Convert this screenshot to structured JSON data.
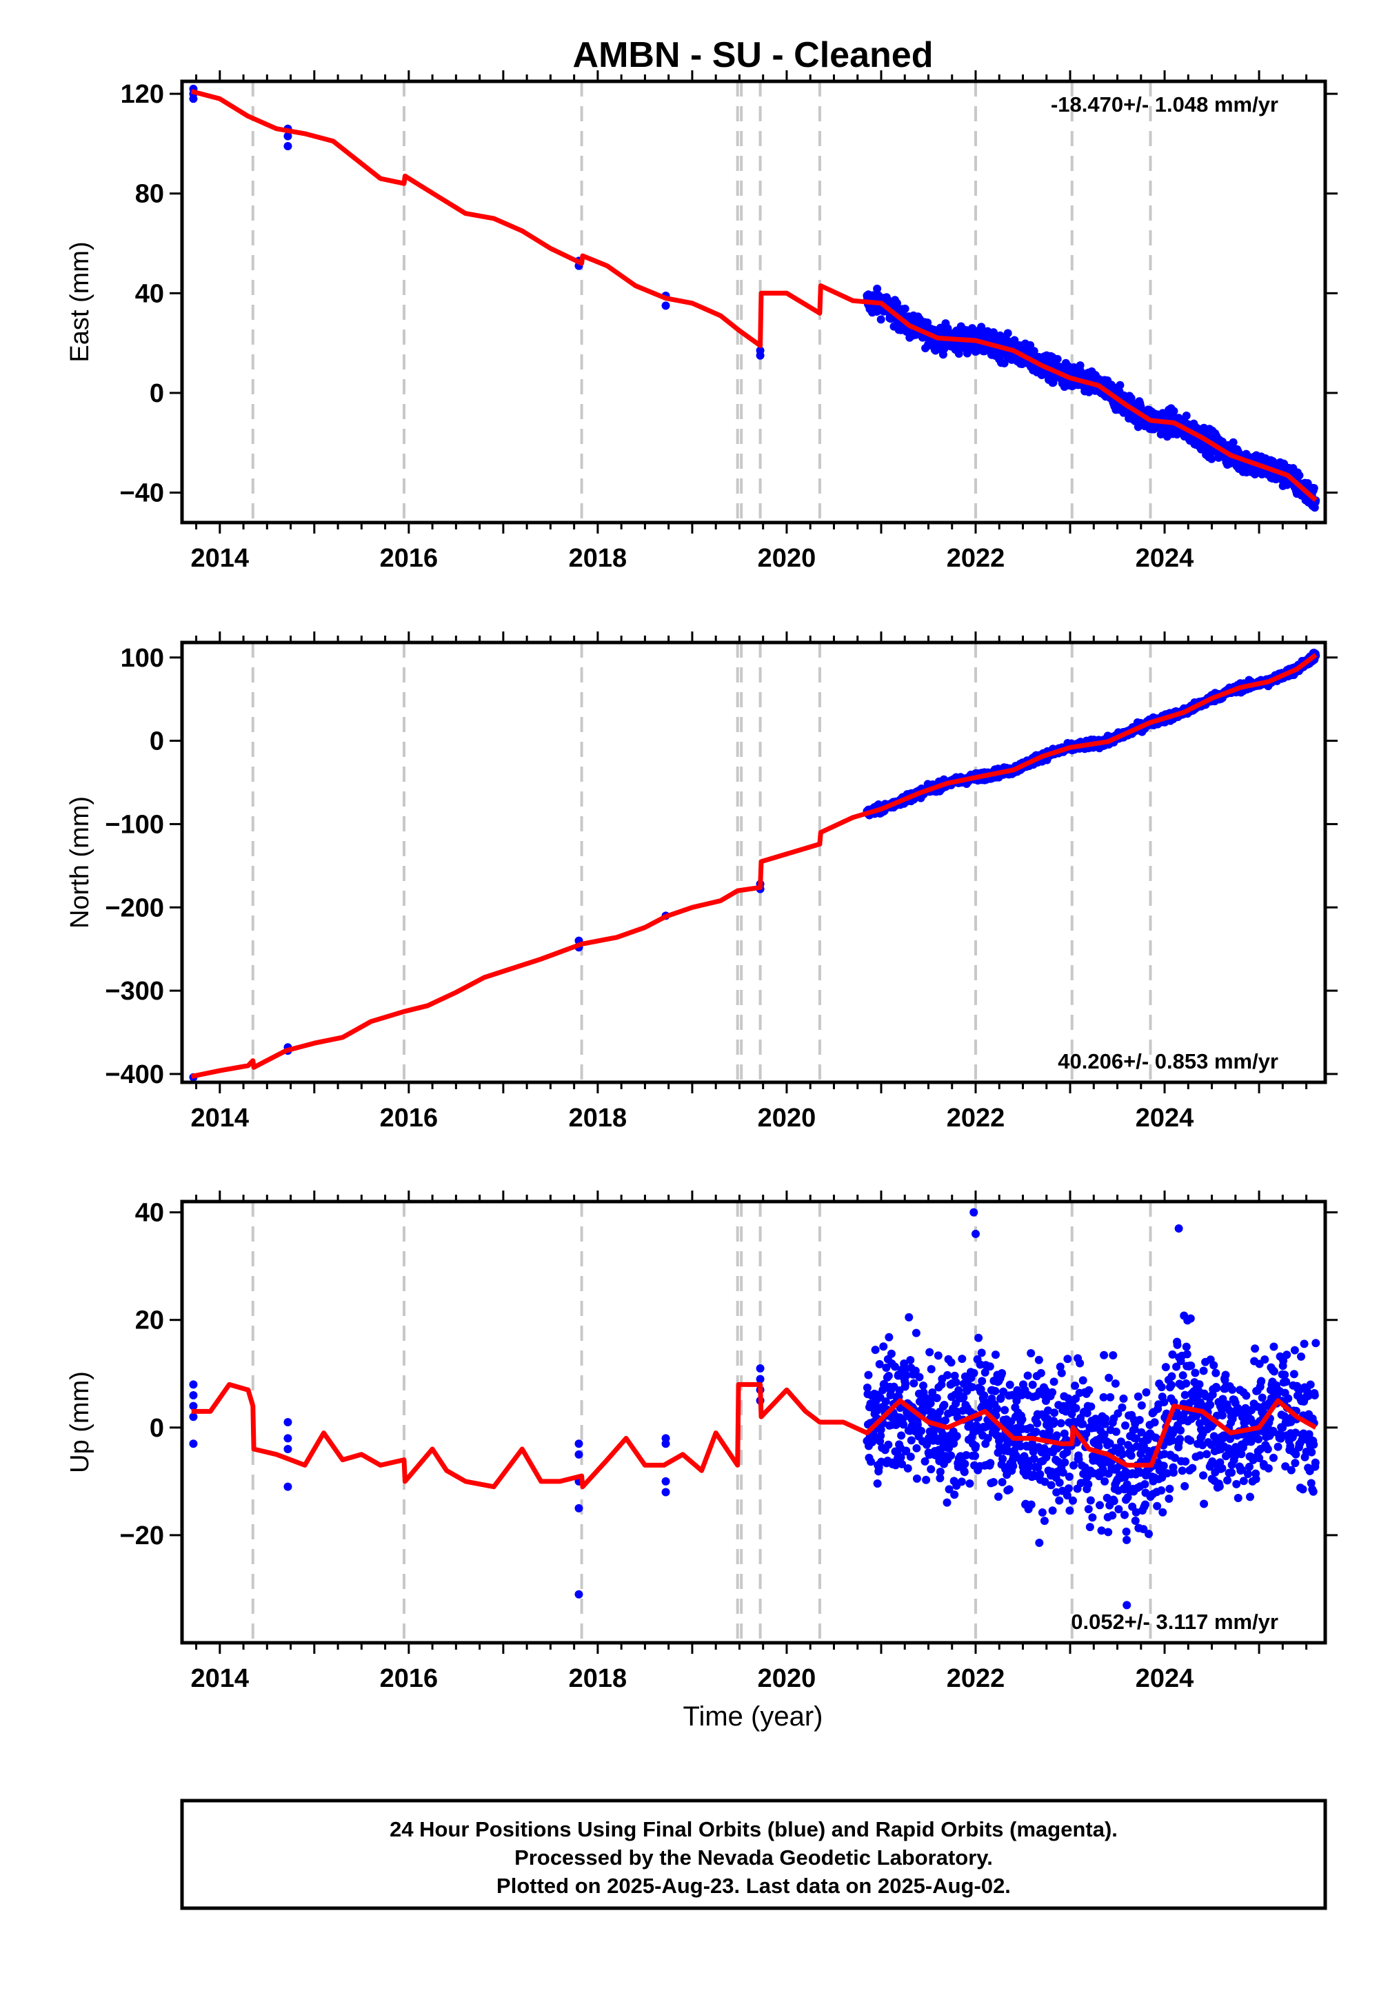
{
  "title": "AMBN  - SU - Cleaned",
  "xlabel": "Time (year)",
  "colors": {
    "data": "#0000ff",
    "model": "#ff0000",
    "offsets": "#c8c8c8",
    "frame": "#000000"
  },
  "footer": {
    "line1": "24 Hour Positions Using Final Orbits (blue) and Rapid Orbits (magenta).",
    "line2": "Processed by the Nevada Geodetic Laboratory.",
    "line3": "Plotted on 2025-Aug-23. Last data on 2025-Aug-02."
  },
  "chart_data": [
    {
      "type": "scatter",
      "ylabel": "East (mm)",
      "rate": "-18.470+/- 1.048 mm/yr",
      "rate_position": "top-right",
      "xlim": [
        2013.6,
        2025.7
      ],
      "ylim": [
        -52,
        125
      ],
      "xticks": [
        2014,
        2016,
        2018,
        2020,
        2022,
        2024
      ],
      "yticks": [
        -40,
        0,
        40,
        80,
        120
      ],
      "offset_lines": [
        2014.35,
        2015.95,
        2017.83,
        2019.48,
        2019.52,
        2019.72,
        2020.35,
        2022.0,
        2023.02,
        2023.85
      ],
      "series": [
        {
          "kind": "points",
          "x": [
            2013.72,
            2013.72,
            2013.72,
            2014.72,
            2014.72,
            2014.72,
            2017.8,
            2017.8,
            2018.72,
            2018.72,
            2019.72,
            2019.72
          ],
          "y": [
            122,
            120,
            118,
            106,
            103,
            99,
            53,
            51,
            39,
            35,
            17,
            15
          ]
        },
        {
          "kind": "cloud",
          "x_start": 2020.85,
          "x_end": 2025.6,
          "y_start": 33,
          "y_end": -44,
          "spread": 3.5
        },
        {
          "kind": "model",
          "x": [
            2013.7,
            2014.0,
            2014.3,
            2014.6,
            2014.9,
            2015.2,
            2015.5,
            2015.7,
            2015.95,
            2015.96,
            2016.3,
            2016.6,
            2016.9,
            2017.2,
            2017.5,
            2017.83,
            2017.84,
            2018.1,
            2018.4,
            2018.72,
            2019.0,
            2019.3,
            2019.5,
            2019.72,
            2019.73,
            2020.0,
            2020.35,
            2020.36,
            2020.7,
            2021.0,
            2021.3,
            2021.6,
            2022.0,
            2022.4,
            2022.7,
            2023.0,
            2023.3,
            2023.6,
            2023.85,
            2024.1,
            2024.4,
            2024.7,
            2025.0,
            2025.3,
            2025.6
          ],
          "y": [
            121,
            118,
            111,
            106,
            104,
            101,
            92,
            86,
            84,
            87,
            79,
            72,
            70,
            65,
            58,
            52,
            55,
            51,
            43,
            38,
            36,
            31,
            25,
            19,
            40,
            40,
            32,
            43,
            37,
            36,
            27,
            22,
            21,
            17,
            11,
            6,
            3,
            -5,
            -11,
            -12,
            -18,
            -25,
            -29,
            -33,
            -43
          ]
        }
      ]
    },
    {
      "type": "scatter",
      "ylabel": "North (mm)",
      "rate": "40.206+/- 0.853 mm/yr",
      "rate_position": "bottom-right",
      "xlim": [
        2013.6,
        2025.7
      ],
      "ylim": [
        -410,
        118
      ],
      "xticks": [
        2014,
        2016,
        2018,
        2020,
        2022,
        2024
      ],
      "yticks": [
        -400,
        -300,
        -200,
        -100,
        0,
        100
      ],
      "offset_lines": [
        2014.35,
        2015.95,
        2017.83,
        2019.48,
        2019.52,
        2019.72,
        2020.35,
        2022.0,
        2023.02,
        2023.85
      ],
      "series": [
        {
          "kind": "points",
          "x": [
            2013.72,
            2014.72,
            2014.72,
            2017.8,
            2017.8,
            2018.72,
            2019.72,
            2019.72
          ],
          "y": [
            -404,
            -372,
            -368,
            -240,
            -248,
            -210,
            -172,
            -178
          ]
        },
        {
          "kind": "cloud",
          "x_start": 2020.85,
          "x_end": 2025.6,
          "y_start": -88,
          "y_end": 103,
          "spread": 3.5
        },
        {
          "kind": "model",
          "x": [
            2013.7,
            2014.0,
            2014.3,
            2014.35,
            2014.36,
            2014.7,
            2015.0,
            2015.3,
            2015.6,
            2015.95,
            2016.2,
            2016.5,
            2016.8,
            2017.1,
            2017.4,
            2017.83,
            2018.2,
            2018.5,
            2018.72,
            2019.0,
            2019.3,
            2019.48,
            2019.72,
            2019.73,
            2020.35,
            2020.36,
            2020.7,
            2021.0,
            2021.4,
            2021.7,
            2022.0,
            2022.4,
            2022.7,
            2023.0,
            2023.4,
            2023.85,
            2024.2,
            2024.5,
            2024.8,
            2025.1,
            2025.4,
            2025.6
          ],
          "y": [
            -403,
            -396,
            -390,
            -384,
            -392,
            -372,
            -363,
            -356,
            -337,
            -325,
            -318,
            -302,
            -284,
            -273,
            -262,
            -244,
            -236,
            -224,
            -211,
            -200,
            -192,
            -180,
            -176,
            -145,
            -124,
            -110,
            -92,
            -82,
            -63,
            -51,
            -44,
            -35,
            -19,
            -8,
            -1,
            22,
            34,
            51,
            64,
            71,
            86,
            103
          ]
        }
      ]
    },
    {
      "type": "scatter",
      "ylabel": "Up (mm)",
      "rate": "0.052+/- 3.117 mm/yr",
      "rate_position": "bottom-right",
      "xlim": [
        2013.6,
        2025.7
      ],
      "ylim": [
        -40,
        42
      ],
      "xticks": [
        2014,
        2016,
        2018,
        2020,
        2022,
        2024
      ],
      "yticks": [
        -20,
        0,
        20,
        40
      ],
      "offset_lines": [
        2014.35,
        2015.95,
        2017.83,
        2019.48,
        2019.52,
        2019.72,
        2020.35,
        2022.0,
        2023.02,
        2023.85
      ],
      "series": [
        {
          "kind": "points",
          "x": [
            2013.72,
            2013.72,
            2013.72,
            2013.72,
            2013.72,
            2014.72,
            2014.72,
            2014.72,
            2014.72,
            2017.8,
            2017.8,
            2017.8,
            2017.8,
            2017.8,
            2018.72,
            2018.72,
            2018.72,
            2018.72,
            2019.72,
            2019.72,
            2019.72,
            2019.72,
            2021.98,
            2022.0,
            2023.6,
            2024.15
          ],
          "y": [
            8,
            6,
            4,
            2,
            -3,
            1,
            -2,
            -4,
            -11,
            -3,
            -5,
            -10,
            -15,
            -31,
            -2,
            -3,
            -10,
            -12,
            11,
            9,
            7,
            5,
            40,
            36,
            -33,
            37
          ]
        },
        {
          "kind": "cloud",
          "x_start": 2020.85,
          "x_end": 2025.6,
          "y_start": 0,
          "y_end": 0,
          "spread": 9
        },
        {
          "kind": "model",
          "x": [
            2013.7,
            2013.9,
            2014.1,
            2014.3,
            2014.35,
            2014.36,
            2014.6,
            2014.9,
            2015.1,
            2015.3,
            2015.5,
            2015.7,
            2015.95,
            2015.96,
            2016.25,
            2016.4,
            2016.6,
            2016.9,
            2017.2,
            2017.4,
            2017.6,
            2017.83,
            2017.84,
            2018.1,
            2018.3,
            2018.5,
            2018.7,
            2018.9,
            2019.1,
            2019.25,
            2019.48,
            2019.49,
            2019.72,
            2019.73,
            2020.0,
            2020.2,
            2020.35,
            2020.6,
            2020.85,
            2021.2,
            2021.5,
            2021.7,
            2022.1,
            2022.4,
            2022.6,
            2022.9,
            2023.02,
            2023.03,
            2023.2,
            2023.4,
            2023.6,
            2023.85,
            2023.86,
            2024.1,
            2024.4,
            2024.7,
            2025.0,
            2025.2,
            2025.4,
            2025.6
          ],
          "y": [
            3,
            3,
            8,
            7,
            4,
            -4,
            -5,
            -7,
            -1,
            -6,
            -5,
            -7,
            -6,
            -10,
            -4,
            -8,
            -10,
            -11,
            -4,
            -10,
            -10,
            -9,
            -11,
            -6,
            -2,
            -7,
            -7,
            -5,
            -8,
            -1,
            -7,
            8,
            8,
            2,
            7,
            3,
            1,
            1,
            -1,
            5,
            1,
            0,
            3,
            -2,
            -2,
            -3,
            -3,
            0,
            -4,
            -5,
            -7,
            -7,
            -7,
            4,
            3,
            -1,
            0,
            5,
            2,
            0
          ]
        }
      ]
    }
  ]
}
